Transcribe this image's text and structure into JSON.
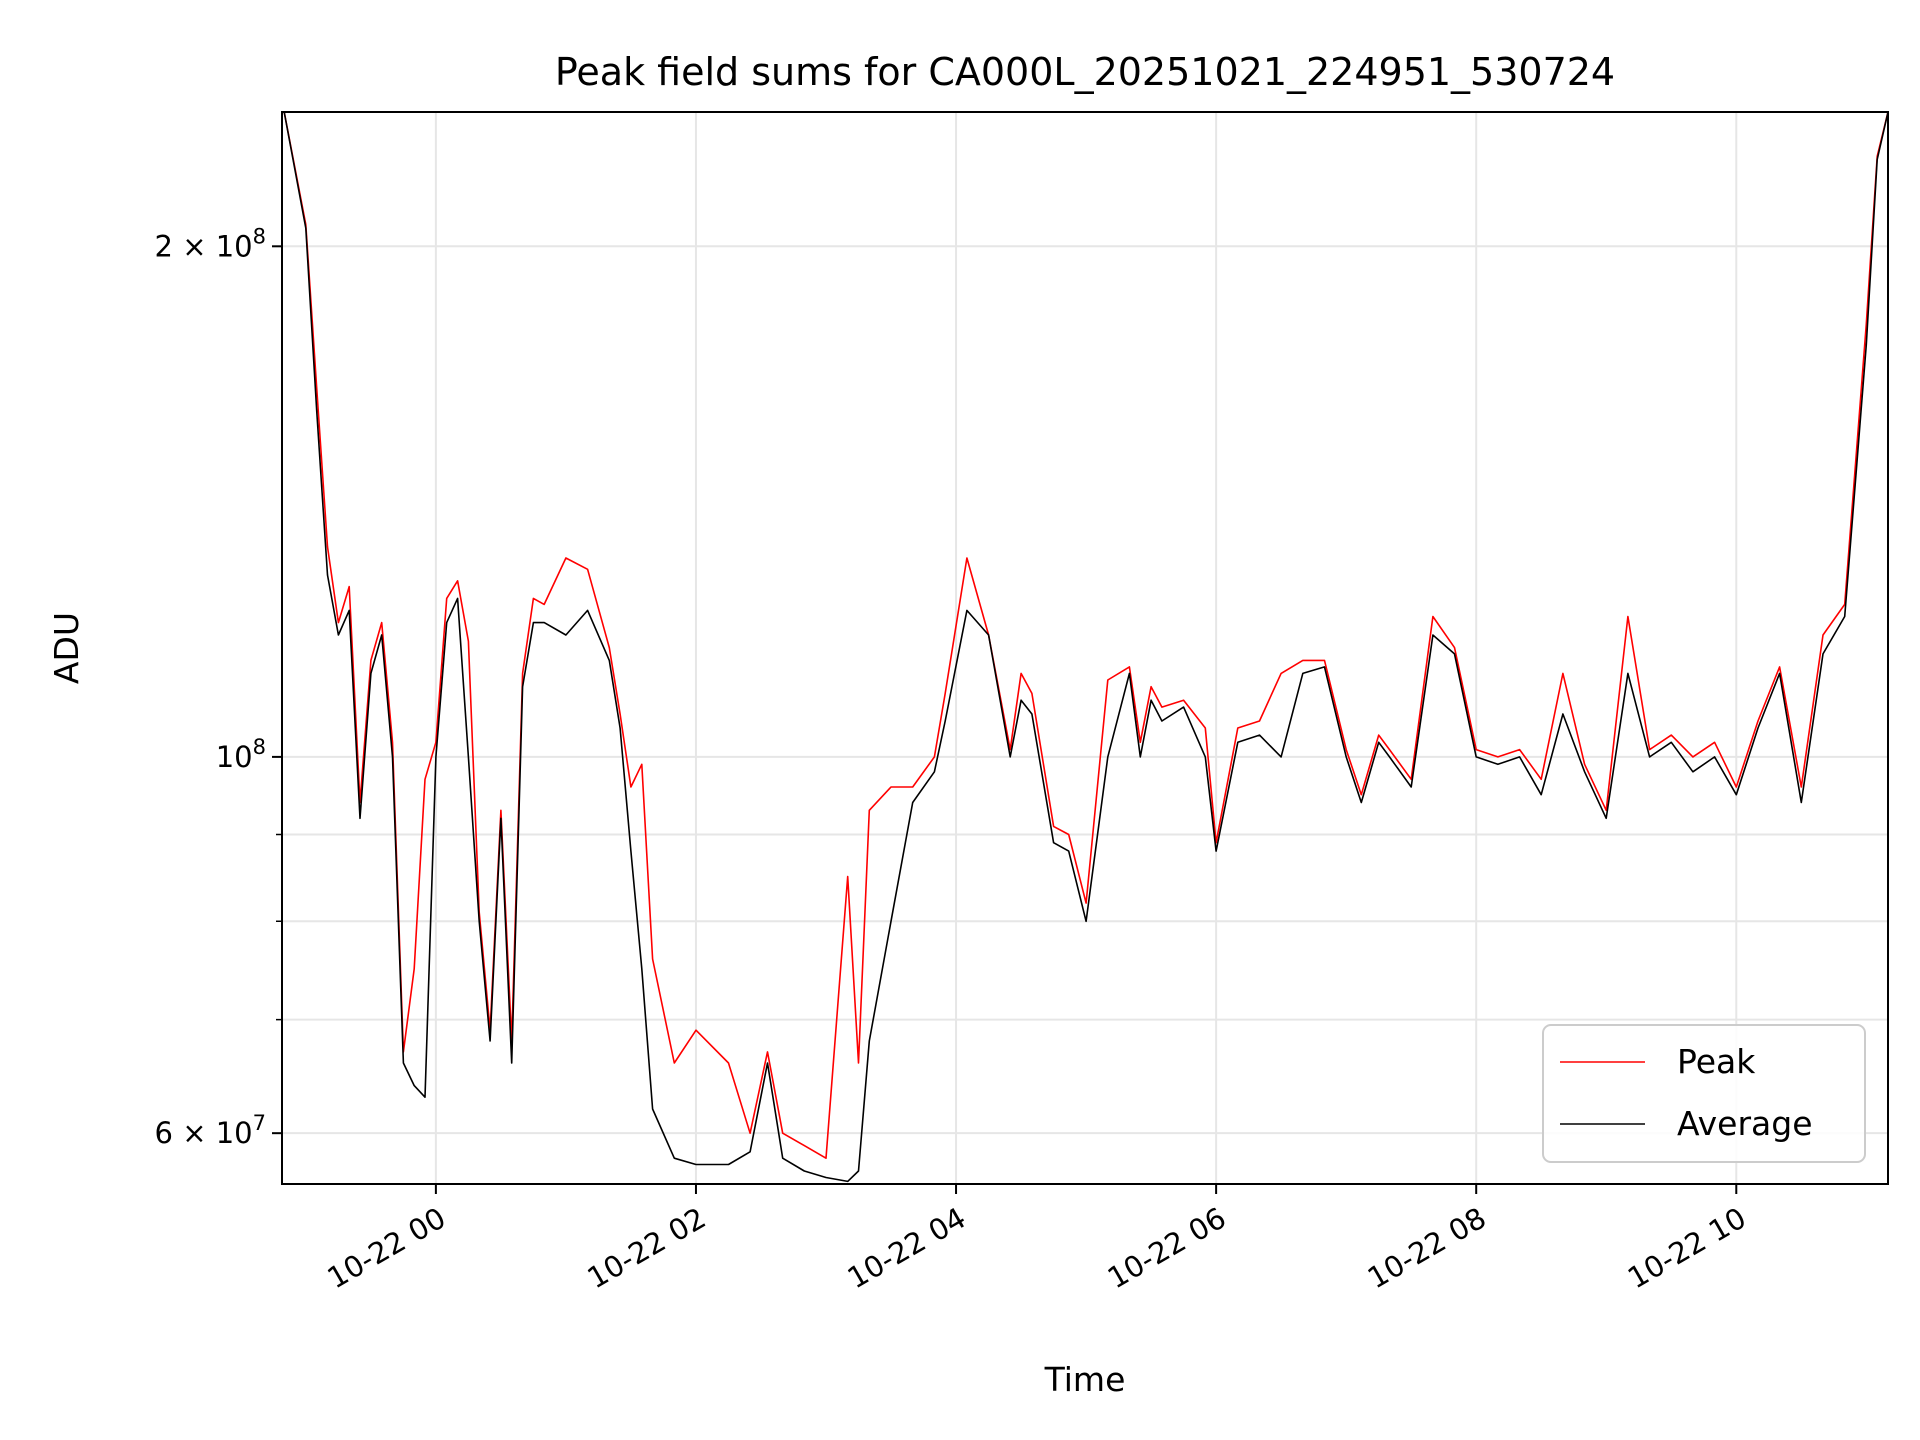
{
  "chart_data": {
    "type": "line",
    "title": "Peak field sums for CA000L_20251021_224951_530724",
    "xlabel": "Time",
    "ylabel": "ADU",
    "y_scale": "log",
    "ylim": [
      56000000,
      240000000
    ],
    "xlim": [
      "2025-10-21 22:49",
      "2025-10-22 11:10"
    ],
    "grid": true,
    "legend_position": "lower right",
    "x_tick_labels": [
      "10-22 00",
      "10-22 02",
      "10-22 04",
      "10-22 06",
      "10-22 08",
      "10-22 10"
    ],
    "x_ticks": [
      "2025-10-22 00:00",
      "2025-10-22 02:00",
      "2025-10-22 04:00",
      "2025-10-22 06:00",
      "2025-10-22 08:00",
      "2025-10-22 10:00"
    ],
    "y_tick_labels": [
      {
        "value": 60000000,
        "mantissa": "6",
        "exponent": "7"
      },
      {
        "value": 100000000,
        "mantissa": "",
        "exponent": "8"
      },
      {
        "value": 200000000,
        "mantissa": "2",
        "exponent": "8"
      }
    ],
    "y_minor_ticks": [
      70000000,
      80000000,
      90000000
    ],
    "series": [
      {
        "name": "Average",
        "color": "#000000",
        "x": [
          "2025-10-21 22:50",
          "2025-10-21 23:00",
          "2025-10-21 23:05",
          "2025-10-21 23:10",
          "2025-10-21 23:15",
          "2025-10-21 23:20",
          "2025-10-21 23:25",
          "2025-10-21 23:30",
          "2025-10-21 23:35",
          "2025-10-21 23:40",
          "2025-10-21 23:45",
          "2025-10-21 23:50",
          "2025-10-21 23:55",
          "2025-10-22 00:00",
          "2025-10-22 00:05",
          "2025-10-22 00:10",
          "2025-10-22 00:15",
          "2025-10-22 00:20",
          "2025-10-22 00:25",
          "2025-10-22 00:30",
          "2025-10-22 00:35",
          "2025-10-22 00:40",
          "2025-10-22 00:45",
          "2025-10-22 00:50",
          "2025-10-22 01:00",
          "2025-10-22 01:10",
          "2025-10-22 01:20",
          "2025-10-22 01:25",
          "2025-10-22 01:30",
          "2025-10-22 01:35",
          "2025-10-22 01:40",
          "2025-10-22 01:50",
          "2025-10-22 02:00",
          "2025-10-22 02:15",
          "2025-10-22 02:25",
          "2025-10-22 02:33",
          "2025-10-22 02:40",
          "2025-10-22 02:50",
          "2025-10-22 03:00",
          "2025-10-22 03:10",
          "2025-10-22 03:15",
          "2025-10-22 03:20",
          "2025-10-22 03:30",
          "2025-10-22 03:40",
          "2025-10-22 03:50",
          "2025-10-22 03:55",
          "2025-10-22 04:05",
          "2025-10-22 04:15",
          "2025-10-22 04:25",
          "2025-10-22 04:30",
          "2025-10-22 04:35",
          "2025-10-22 04:45",
          "2025-10-22 04:52",
          "2025-10-22 05:00",
          "2025-10-22 05:10",
          "2025-10-22 05:20",
          "2025-10-22 05:25",
          "2025-10-22 05:30",
          "2025-10-22 05:35",
          "2025-10-22 05:45",
          "2025-10-22 05:55",
          "2025-10-22 06:00",
          "2025-10-22 06:10",
          "2025-10-22 06:20",
          "2025-10-22 06:30",
          "2025-10-22 06:40",
          "2025-10-22 06:50",
          "2025-10-22 07:00",
          "2025-10-22 07:07",
          "2025-10-22 07:15",
          "2025-10-22 07:20",
          "2025-10-22 07:30",
          "2025-10-22 07:40",
          "2025-10-22 07:50",
          "2025-10-22 08:00",
          "2025-10-22 08:10",
          "2025-10-22 08:20",
          "2025-10-22 08:30",
          "2025-10-22 08:40",
          "2025-10-22 08:50",
          "2025-10-22 09:00",
          "2025-10-22 09:10",
          "2025-10-22 09:20",
          "2025-10-22 09:30",
          "2025-10-22 09:40",
          "2025-10-22 09:50",
          "2025-10-22 10:00",
          "2025-10-22 10:10",
          "2025-10-22 10:20",
          "2025-10-22 10:30",
          "2025-10-22 10:40",
          "2025-10-22 10:50",
          "2025-10-22 11:00",
          "2025-10-22 11:05",
          "2025-10-22 11:10"
        ],
        "values": [
          240000000,
          205000000,
          160000000,
          128000000,
          118000000,
          122000000,
          92000000,
          112000000,
          118000000,
          100000000,
          66000000,
          64000000,
          63000000,
          100000000,
          120000000,
          124000000,
          100000000,
          80000000,
          68000000,
          92000000,
          66000000,
          110000000,
          120000000,
          120000000,
          118000000,
          122000000,
          114000000,
          104000000,
          88000000,
          75000000,
          62000000,
          58000000,
          57500000,
          57500000,
          58500000,
          66000000,
          58000000,
          57000000,
          56500000,
          56200000,
          57000000,
          68000000,
          80000000,
          94000000,
          98000000,
          105000000,
          122000000,
          118000000,
          100000000,
          108000000,
          106000000,
          89000000,
          88000000,
          80000000,
          100000000,
          112000000,
          100000000,
          108000000,
          105000000,
          107000000,
          100000000,
          88000000,
          102000000,
          103000000,
          100000000,
          112000000,
          113000000,
          100000000,
          94000000,
          102000000,
          100000000,
          96000000,
          118000000,
          115000000,
          100000000,
          99000000,
          100000000,
          95000000,
          106000000,
          98000000,
          92000000,
          112000000,
          100000000,
          102000000,
          98000000,
          100000000,
          95000000,
          104000000,
          112000000,
          94000000,
          115000000,
          121000000,
          175000000,
          225000000,
          240000000
        ]
      },
      {
        "name": "Peak",
        "color": "#ff0000",
        "x": [
          "2025-10-21 22:50",
          "2025-10-21 23:00",
          "2025-10-21 23:05",
          "2025-10-21 23:10",
          "2025-10-21 23:15",
          "2025-10-21 23:20",
          "2025-10-21 23:25",
          "2025-10-21 23:30",
          "2025-10-21 23:35",
          "2025-10-21 23:40",
          "2025-10-21 23:45",
          "2025-10-21 23:50",
          "2025-10-21 23:55",
          "2025-10-22 00:00",
          "2025-10-22 00:05",
          "2025-10-22 00:10",
          "2025-10-22 00:15",
          "2025-10-22 00:20",
          "2025-10-22 00:25",
          "2025-10-22 00:30",
          "2025-10-22 00:35",
          "2025-10-22 00:40",
          "2025-10-22 00:45",
          "2025-10-22 00:50",
          "2025-10-22 01:00",
          "2025-10-22 01:10",
          "2025-10-22 01:20",
          "2025-10-22 01:25",
          "2025-10-22 01:30",
          "2025-10-22 01:35",
          "2025-10-22 01:40",
          "2025-10-22 01:50",
          "2025-10-22 02:00",
          "2025-10-22 02:15",
          "2025-10-22 02:25",
          "2025-10-22 02:33",
          "2025-10-22 02:40",
          "2025-10-22 02:50",
          "2025-10-22 03:00",
          "2025-10-22 03:10",
          "2025-10-22 03:15",
          "2025-10-22 03:20",
          "2025-10-22 03:30",
          "2025-10-22 03:40",
          "2025-10-22 03:50",
          "2025-10-22 03:55",
          "2025-10-22 04:05",
          "2025-10-22 04:15",
          "2025-10-22 04:25",
          "2025-10-22 04:30",
          "2025-10-22 04:35",
          "2025-10-22 04:45",
          "2025-10-22 04:52",
          "2025-10-22 05:00",
          "2025-10-22 05:10",
          "2025-10-22 05:20",
          "2025-10-22 05:25",
          "2025-10-22 05:30",
          "2025-10-22 05:35",
          "2025-10-22 05:45",
          "2025-10-22 05:55",
          "2025-10-22 06:00",
          "2025-10-22 06:10",
          "2025-10-22 06:20",
          "2025-10-22 06:30",
          "2025-10-22 06:40",
          "2025-10-22 06:50",
          "2025-10-22 07:00",
          "2025-10-22 07:07",
          "2025-10-22 07:15",
          "2025-10-22 07:20",
          "2025-10-22 07:30",
          "2025-10-22 07:40",
          "2025-10-22 07:50",
          "2025-10-22 08:00",
          "2025-10-22 08:10",
          "2025-10-22 08:20",
          "2025-10-22 08:30",
          "2025-10-22 08:40",
          "2025-10-22 08:50",
          "2025-10-22 09:00",
          "2025-10-22 09:10",
          "2025-10-22 09:20",
          "2025-10-22 09:30",
          "2025-10-22 09:40",
          "2025-10-22 09:50",
          "2025-10-22 10:00",
          "2025-10-22 10:10",
          "2025-10-22 10:20",
          "2025-10-22 10:30",
          "2025-10-22 10:40",
          "2025-10-22 10:50",
          "2025-10-22 11:00",
          "2025-10-22 11:05",
          "2025-10-22 11:10"
        ],
        "values": [
          240000000,
          206000000,
          165000000,
          133000000,
          120000000,
          126000000,
          94000000,
          114000000,
          120000000,
          102000000,
          67000000,
          75000000,
          97000000,
          102000000,
          124000000,
          127000000,
          117000000,
          81000000,
          69000000,
          93000000,
          68000000,
          112000000,
          124000000,
          123000000,
          131000000,
          129000000,
          116000000,
          106000000,
          96000000,
          99000000,
          76000000,
          66000000,
          69000000,
          66000000,
          60000000,
          67000000,
          60000000,
          59000000,
          58000000,
          85000000,
          66000000,
          93000000,
          96000000,
          96000000,
          100000000,
          109000000,
          131000000,
          118000000,
          101000000,
          112000000,
          109000000,
          91000000,
          90000000,
          82000000,
          111000000,
          113000000,
          102000000,
          110000000,
          107000000,
          108000000,
          104000000,
          89000000,
          104000000,
          105000000,
          112000000,
          114000000,
          114000000,
          101000000,
          95000000,
          103000000,
          101000000,
          97000000,
          121000000,
          116000000,
          101000000,
          100000000,
          101000000,
          97000000,
          112000000,
          99000000,
          93000000,
          121000000,
          101000000,
          103000000,
          100000000,
          102000000,
          96000000,
          105000000,
          113000000,
          96000000,
          118000000,
          123000000,
          180000000,
          226000000,
          240000000
        ]
      }
    ]
  }
}
